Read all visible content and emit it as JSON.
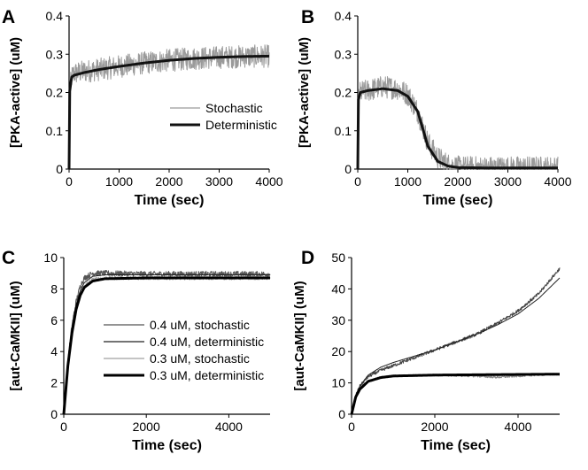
{
  "chart_data": [
    {
      "panel": "A",
      "type": "line",
      "xlabel": "Time (sec)",
      "ylabel": "[PKA-active] (uM)",
      "xlim": [
        0,
        4000
      ],
      "ylim": [
        0,
        0.4
      ],
      "xticks": [
        0,
        1000,
        2000,
        3000,
        4000
      ],
      "xtick_labels": [
        "0",
        "1000",
        "2000",
        "3000",
        "4000"
      ],
      "yticks": [
        0,
        0.1,
        0.2,
        0.3,
        0.4
      ],
      "ytick_labels": [
        "0",
        "0.1",
        "0.2",
        "0.3",
        "0.4"
      ],
      "grid": false,
      "legend_position": "center-right",
      "series": [
        {
          "name": "Stochastic",
          "color": "#9a9a9a",
          "style": "thin-noisy",
          "noise": 0.03,
          "x": [
            0,
            10,
            50,
            100,
            300,
            600,
            1000,
            1500,
            2000,
            2500,
            3000,
            3500,
            4000
          ],
          "y": [
            0,
            0.2,
            0.24,
            0.25,
            0.255,
            0.26,
            0.268,
            0.277,
            0.284,
            0.289,
            0.292,
            0.294,
            0.295
          ]
        },
        {
          "name": "Deterministic",
          "color": "#111111",
          "style": "thick",
          "x": [
            0,
            10,
            50,
            100,
            300,
            600,
            1000,
            1500,
            2000,
            2500,
            3000,
            3500,
            4000
          ],
          "y": [
            0,
            0.2,
            0.24,
            0.245,
            0.252,
            0.26,
            0.268,
            0.277,
            0.284,
            0.289,
            0.292,
            0.294,
            0.295
          ]
        }
      ]
    },
    {
      "panel": "B",
      "type": "line",
      "xlabel": "Time (sec)",
      "ylabel": "[PKA-active] (uM)",
      "xlim": [
        0,
        4000
      ],
      "ylim": [
        0,
        0.4
      ],
      "xticks": [
        0,
        1000,
        2000,
        3000,
        4000
      ],
      "xtick_labels": [
        "0",
        "1000",
        "2000",
        "3000",
        "4000"
      ],
      "yticks": [
        0,
        0.1,
        0.2,
        0.3,
        0.4
      ],
      "ytick_labels": [
        "0",
        "0.1",
        "0.2",
        "0.3",
        "0.4"
      ],
      "grid": false,
      "series": [
        {
          "color": "#9a9a9a",
          "style": "thin-noisy",
          "noise": 0.03,
          "x": [
            0,
            10,
            50,
            200,
            500,
            800,
            1000,
            1200,
            1400,
            1600,
            1800,
            2000,
            2500,
            3000,
            4000
          ],
          "y": [
            0,
            0.18,
            0.2,
            0.205,
            0.215,
            0.21,
            0.195,
            0.15,
            0.07,
            0.03,
            0.012,
            0.005,
            0.004,
            0.004,
            0.004
          ]
        },
        {
          "color": "#111111",
          "style": "thick",
          "x": [
            0,
            10,
            50,
            200,
            500,
            800,
            1000,
            1200,
            1400,
            1600,
            1800,
            2000,
            2500,
            3000,
            4000
          ],
          "y": [
            0,
            0.18,
            0.2,
            0.205,
            0.21,
            0.205,
            0.19,
            0.15,
            0.06,
            0.02,
            0.008,
            0.004,
            0.003,
            0.003,
            0.003
          ]
        }
      ]
    },
    {
      "panel": "C",
      "type": "line",
      "xlabel": "Time (sec)",
      "ylabel": "[aut-CaMKII] (uM)",
      "xlim": [
        0,
        5000
      ],
      "ylim": [
        0,
        10
      ],
      "xticks": [
        0,
        2000,
        4000
      ],
      "xtick_labels": [
        "0",
        "2000",
        "4000"
      ],
      "yticks": [
        0,
        2,
        4,
        6,
        8,
        10
      ],
      "ytick_labels": [
        "0",
        "2",
        "4",
        "6",
        "8",
        "10"
      ],
      "grid": false,
      "legend_position": "center-right",
      "series": [
        {
          "name": "0.4 uM, stochastic",
          "color": "#555555",
          "style": "thin-noisy",
          "noise": 0.18,
          "x": [
            0,
            100,
            200,
            300,
            400,
            500,
            700,
            1000,
            2000,
            3000,
            4000,
            5000
          ],
          "y": [
            0,
            3.5,
            5.7,
            7.2,
            8.2,
            8.7,
            9.0,
            9.0,
            8.95,
            8.95,
            8.95,
            8.95
          ]
        },
        {
          "name": "0.4 uM, deterministic",
          "color": "#222222",
          "style": "thin",
          "x": [
            0,
            100,
            200,
            300,
            400,
            500,
            700,
            1000,
            2000,
            3000,
            4000,
            5000
          ],
          "y": [
            0,
            3.3,
            5.5,
            7.0,
            7.9,
            8.4,
            8.8,
            8.9,
            8.9,
            8.9,
            8.9,
            8.9
          ]
        },
        {
          "name": "0.3 uM, stochastic",
          "color": "#a0a0a0",
          "style": "thin-noisy",
          "noise": 0.12,
          "x": [
            0,
            100,
            200,
            300,
            400,
            500,
            700,
            1000,
            2000,
            3000,
            4000,
            5000
          ],
          "y": [
            0,
            3.2,
            5.3,
            6.8,
            7.7,
            8.2,
            8.6,
            8.7,
            8.7,
            8.7,
            8.7,
            8.7
          ]
        },
        {
          "name": "0.3 uM, deterministic",
          "color": "#000000",
          "style": "thick",
          "x": [
            0,
            100,
            200,
            300,
            400,
            500,
            700,
            1000,
            2000,
            3000,
            4000,
            5000
          ],
          "y": [
            0,
            3.1,
            5.2,
            6.7,
            7.6,
            8.1,
            8.5,
            8.65,
            8.7,
            8.7,
            8.7,
            8.7
          ]
        }
      ]
    },
    {
      "panel": "D",
      "type": "line",
      "xlabel": "Time (sec)",
      "ylabel": "[aut-CaMKII] (uM)",
      "xlim": [
        0,
        5000
      ],
      "ylim": [
        0,
        50
      ],
      "xticks": [
        0,
        2000,
        4000
      ],
      "xtick_labels": [
        "0",
        "2000",
        "4000"
      ],
      "yticks": [
        0,
        10,
        20,
        30,
        40,
        50
      ],
      "ytick_labels": [
        "0",
        "10",
        "20",
        "30",
        "40",
        "50"
      ],
      "grid": false,
      "series": [
        {
          "color": "#444444",
          "style": "thin-noisy",
          "noise": 0.5,
          "x": [
            0,
            100,
            200,
            400,
            700,
            1000,
            1500,
            2000,
            2500,
            3000,
            3500,
            4000,
            4500,
            5000
          ],
          "y": [
            0,
            6,
            9,
            12,
            14,
            15.5,
            18,
            20.5,
            23,
            25.5,
            29,
            33,
            38.5,
            46.5
          ]
        },
        {
          "color": "#222222",
          "style": "thin",
          "x": [
            0,
            100,
            200,
            400,
            700,
            1000,
            1500,
            2000,
            2500,
            3000,
            3500,
            4000,
            4500,
            5000
          ],
          "y": [
            0,
            6,
            9,
            12.5,
            15,
            16.5,
            18.5,
            20.5,
            23,
            25.5,
            28.5,
            32,
            37,
            43.5
          ]
        },
        {
          "color": "#888888",
          "style": "thin-noisy",
          "noise": 0.35,
          "x": [
            0,
            100,
            200,
            400,
            700,
            1000,
            2000,
            3000,
            3500,
            4000,
            4500,
            5000
          ],
          "y": [
            0,
            5.5,
            8,
            10.5,
            11.8,
            12.2,
            12.5,
            12.2,
            11.8,
            12.2,
            12.6,
            12.8
          ]
        },
        {
          "color": "#000000",
          "style": "thick",
          "x": [
            0,
            100,
            200,
            400,
            700,
            1000,
            2000,
            3000,
            4000,
            5000
          ],
          "y": [
            0,
            5.5,
            8,
            10.5,
            11.7,
            12.2,
            12.5,
            12.6,
            12.7,
            12.8
          ]
        }
      ]
    }
  ]
}
